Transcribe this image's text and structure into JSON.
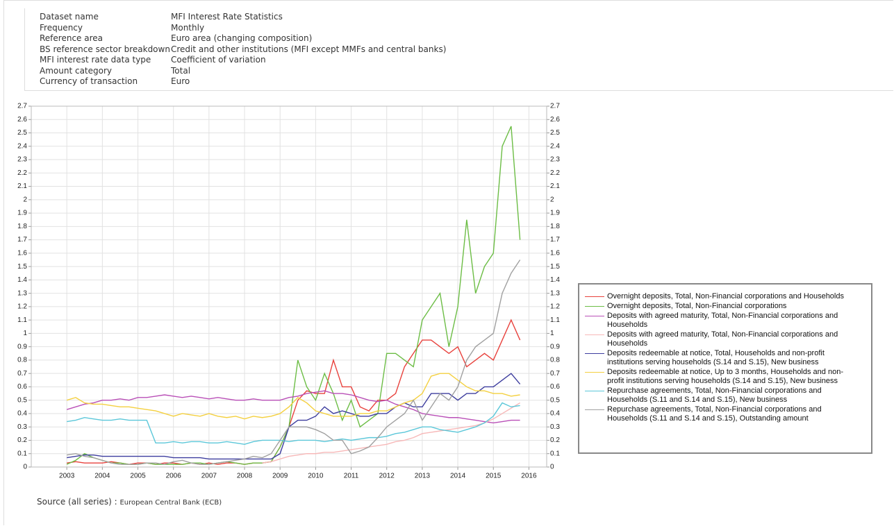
{
  "metadata": [
    {
      "label": "Dataset name",
      "value": "MFI Interest Rate Statistics"
    },
    {
      "label": "Frequency",
      "value": "Monthly"
    },
    {
      "label": "Reference area",
      "value": "Euro area (changing composition)"
    },
    {
      "label": "BS reference sector breakdown",
      "value": "Credit and other institutions (MFI except MMFs and central banks)"
    },
    {
      "label": "MFI interest rate data type",
      "value": "Coefficient of variation"
    },
    {
      "label": "Amount category",
      "value": "Total"
    },
    {
      "label": "Currency of transaction",
      "value": "Euro"
    }
  ],
  "source": {
    "label": "Source (all series) :",
    "value": "European Central Bank (ECB)"
  },
  "chart_data": {
    "type": "line",
    "x": [
      2003,
      2003.25,
      2003.5,
      2003.75,
      2004,
      2004.25,
      2004.5,
      2004.75,
      2005,
      2005.25,
      2005.5,
      2005.75,
      2006,
      2006.25,
      2006.5,
      2006.75,
      2007,
      2007.25,
      2007.5,
      2007.75,
      2008,
      2008.25,
      2008.5,
      2008.75,
      2009,
      2009.25,
      2009.5,
      2009.75,
      2010,
      2010.25,
      2010.5,
      2010.75,
      2011,
      2011.25,
      2011.5,
      2011.75,
      2012,
      2012.25,
      2012.5,
      2012.75,
      2013,
      2013.25,
      2013.5,
      2013.75,
      2014,
      2014.25,
      2014.5,
      2014.75,
      2015,
      2015.25,
      2015.5,
      2015.75
    ],
    "xlim": [
      2002,
      2016.5
    ],
    "xticks": [
      2003,
      2004,
      2005,
      2006,
      2007,
      2008,
      2009,
      2010,
      2011,
      2012,
      2013,
      2014,
      2015,
      2016
    ],
    "ylim": [
      0,
      2.7
    ],
    "yticks": [
      0,
      0.1,
      0.2,
      0.3,
      0.4,
      0.5,
      0.6,
      0.7,
      0.8,
      0.9,
      1,
      1.1,
      1.2,
      1.3,
      1.4,
      1.5,
      1.6,
      1.7,
      1.8,
      1.9,
      2,
      2.1,
      2.2,
      2.3,
      2.4,
      2.5,
      2.6,
      2.7
    ],
    "y2lim": [
      0,
      2.7
    ],
    "y2ticks": [
      0,
      0.1,
      0.2,
      0.3,
      0.4,
      0.5,
      0.6,
      0.7,
      0.8,
      0.9,
      1,
      1.1,
      1.2,
      1.3,
      1.4,
      1.5,
      1.6,
      1.7,
      1.8,
      1.9,
      2,
      2.1,
      2.2,
      2.3,
      2.4,
      2.5,
      2.6,
      2.7
    ],
    "grid": true,
    "legend": "right",
    "series": [
      {
        "name": "Overnight deposits, Total, Non-Financial corporations and Households",
        "color": "#e8413c",
        "values": [
          0.03,
          0.04,
          0.03,
          0.03,
          0.03,
          0.04,
          0.03,
          0.02,
          0.03,
          0.03,
          0.02,
          0.03,
          0.03,
          0.02,
          0.03,
          0.02,
          0.03,
          0.02,
          0.03,
          0.03,
          0.02,
          0.03,
          0.03,
          0.04,
          0.15,
          0.3,
          0.5,
          0.57,
          0.55,
          0.55,
          0.8,
          0.6,
          0.6,
          0.45,
          0.42,
          0.5,
          0.5,
          0.55,
          0.75,
          0.85,
          0.95,
          0.95,
          0.9,
          0.85,
          0.9,
          0.75,
          0.8,
          0.85,
          0.8,
          0.95,
          1.1,
          0.95
        ]
      },
      {
        "name": "Overnight deposits, Total, Non-Financial corporations",
        "color": "#6cbd45",
        "values": [
          0.02,
          0.05,
          0.1,
          0.07,
          0.05,
          0.03,
          0.03,
          0.02,
          0.02,
          0.03,
          0.02,
          0.02,
          0.02,
          0.02,
          0.03,
          0.03,
          0.02,
          0.03,
          0.04,
          0.03,
          0.02,
          0.03,
          0.03,
          0.04,
          0.15,
          0.3,
          0.8,
          0.6,
          0.5,
          0.7,
          0.55,
          0.35,
          0.5,
          0.3,
          0.35,
          0.4,
          0.85,
          0.85,
          0.8,
          0.75,
          1.1,
          1.2,
          1.3,
          0.9,
          1.2,
          1.85,
          1.3,
          1.5,
          1.6,
          2.4,
          2.55,
          1.7
        ]
      },
      {
        "name": "Deposits with agreed maturity, Total, Non-Financial corporations and Households",
        "color": "#b94fb7",
        "values": [
          0.43,
          0.45,
          0.47,
          0.48,
          0.5,
          0.5,
          0.51,
          0.5,
          0.52,
          0.52,
          0.53,
          0.54,
          0.53,
          0.52,
          0.53,
          0.52,
          0.51,
          0.52,
          0.51,
          0.5,
          0.5,
          0.51,
          0.5,
          0.5,
          0.5,
          0.52,
          0.53,
          0.55,
          0.56,
          0.57,
          0.55,
          0.55,
          0.54,
          0.52,
          0.5,
          0.49,
          0.5,
          0.47,
          0.45,
          0.43,
          0.4,
          0.39,
          0.38,
          0.37,
          0.37,
          0.36,
          0.35,
          0.34,
          0.33,
          0.34,
          0.35,
          0.35
        ]
      },
      {
        "name": "Deposits with agreed maturity, Total, Non-Financial corporations and Households",
        "color": "#f7b8b8",
        "values": [
          null,
          null,
          null,
          null,
          null,
          null,
          null,
          null,
          null,
          null,
          null,
          null,
          null,
          null,
          null,
          null,
          null,
          null,
          null,
          null,
          null,
          null,
          0.03,
          0.04,
          0.06,
          0.08,
          0.09,
          0.1,
          0.1,
          0.11,
          0.11,
          0.12,
          0.13,
          0.14,
          0.15,
          0.16,
          0.17,
          0.19,
          0.2,
          0.22,
          0.25,
          0.26,
          0.27,
          0.28,
          0.29,
          0.3,
          0.31,
          0.33,
          0.36,
          0.4,
          0.44,
          0.48
        ]
      },
      {
        "name": "Deposits redeemable at notice, Total, Households and non-profit institutions serving households (S.14 and S.15), New business",
        "color": "#3d3d9e",
        "values": [
          0.07,
          0.08,
          0.09,
          0.09,
          0.08,
          0.08,
          0.08,
          0.08,
          0.08,
          0.08,
          0.08,
          0.08,
          0.07,
          0.07,
          0.07,
          0.07,
          0.06,
          0.06,
          0.06,
          0.06,
          0.06,
          0.06,
          0.06,
          0.06,
          0.1,
          0.3,
          0.35,
          0.35,
          0.38,
          0.45,
          0.4,
          0.42,
          0.4,
          0.38,
          0.38,
          0.4,
          0.4,
          0.45,
          0.48,
          0.45,
          0.45,
          0.55,
          0.55,
          0.55,
          0.5,
          0.55,
          0.55,
          0.6,
          0.6,
          0.65,
          0.7,
          0.62
        ]
      },
      {
        "name": "Deposits redeemable at notice, Up to 3 months, Households and non-profit institutions serving households (S.14 and S.15), New business",
        "color": "#f4d03f",
        "values": [
          0.5,
          0.52,
          0.48,
          0.47,
          0.47,
          0.46,
          0.45,
          0.45,
          0.44,
          0.43,
          0.42,
          0.4,
          0.38,
          0.4,
          0.39,
          0.38,
          0.4,
          0.38,
          0.37,
          0.38,
          0.36,
          0.38,
          0.37,
          0.38,
          0.4,
          0.45,
          0.52,
          0.48,
          0.42,
          0.4,
          0.38,
          0.38,
          0.38,
          0.4,
          0.4,
          0.42,
          0.42,
          0.45,
          0.48,
          0.5,
          0.55,
          0.68,
          0.7,
          0.7,
          0.65,
          0.6,
          0.57,
          0.57,
          0.55,
          0.55,
          0.53,
          0.54
        ]
      },
      {
        "name": "Repurchase agreements, Total, Non-Financial corporations and Households (S.11 and S.14 and S.15), New business",
        "color": "#5bc7d9",
        "values": [
          0.34,
          0.35,
          0.37,
          0.36,
          0.35,
          0.35,
          0.36,
          0.35,
          0.35,
          0.35,
          0.18,
          0.18,
          0.19,
          0.18,
          0.19,
          0.19,
          0.18,
          0.18,
          0.19,
          0.18,
          0.17,
          0.19,
          0.2,
          0.2,
          0.2,
          0.19,
          0.2,
          0.2,
          0.2,
          0.19,
          0.2,
          0.21,
          0.2,
          0.21,
          0.22,
          0.22,
          0.23,
          0.25,
          0.26,
          0.28,
          0.3,
          0.3,
          0.28,
          0.27,
          0.26,
          0.28,
          0.3,
          0.33,
          0.38,
          0.48,
          0.45,
          0.46
        ]
      },
      {
        "name": "Repurchase agreements, Total, Non-Financial corporations and Households (S.11 and S.14 and S.15), Outstanding amount",
        "color": "#a0a0a0",
        "values": [
          0.09,
          0.1,
          0.08,
          0.07,
          0.05,
          0.03,
          0.02,
          0.02,
          0.02,
          0.03,
          0.03,
          0.02,
          0.04,
          0.05,
          0.03,
          0.02,
          0.02,
          0.03,
          0.04,
          0.05,
          0.06,
          0.08,
          0.07,
          0.1,
          0.2,
          0.3,
          0.3,
          0.3,
          0.28,
          0.25,
          0.2,
          0.2,
          0.1,
          0.12,
          0.15,
          0.22,
          0.3,
          0.35,
          0.4,
          0.5,
          0.35,
          0.45,
          0.55,
          0.5,
          0.6,
          0.8,
          0.9,
          0.95,
          1.0,
          1.3,
          1.45,
          1.55
        ]
      }
    ]
  }
}
